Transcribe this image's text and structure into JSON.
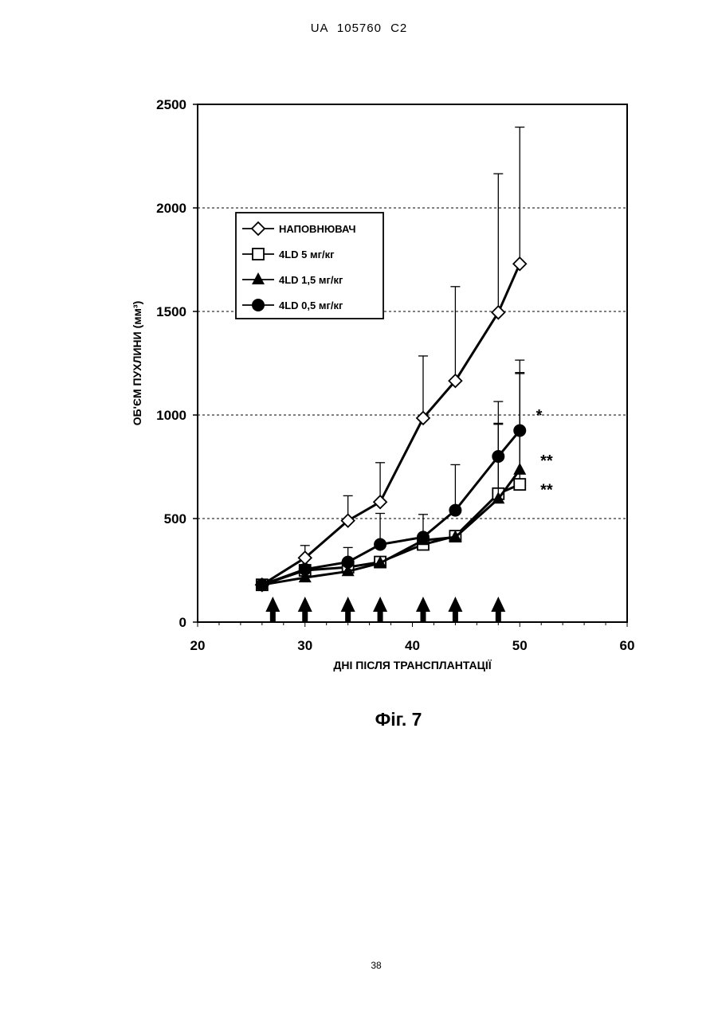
{
  "header": {
    "text": "UA   105760   C2"
  },
  "caption": "Фіг. 7",
  "page_number": "38",
  "chart_data": {
    "type": "line",
    "xlabel": "ДНІ ПІСЛЯ ТРАНСПЛАНТАЦІЇ",
    "ylabel": "ОБ'ЄМ ПУХЛИНИ (мм³)",
    "xlim": [
      20,
      60
    ],
    "ylim": [
      0,
      2500
    ],
    "x_ticks": [
      20,
      30,
      40,
      50,
      60
    ],
    "y_ticks": [
      0,
      500,
      1000,
      1500,
      2000,
      2500
    ],
    "grid": "horizontal dashed at 500, 1000, 1500, 2000",
    "legend_position": "top-left",
    "series": [
      {
        "name": "НАПОВНЮВАЧ",
        "marker": "diamond-open",
        "x": [
          26,
          30,
          34,
          37,
          41,
          44,
          48,
          50
        ],
        "y": [
          180,
          310,
          490,
          580,
          985,
          1165,
          1495,
          1730
        ],
        "err": [
          0,
          60,
          120,
          190,
          300,
          455,
          670,
          660
        ]
      },
      {
        "name": "4LD 5 мг/кг",
        "marker": "square-open",
        "x": [
          26,
          30,
          34,
          37,
          41,
          44,
          48,
          50
        ],
        "y": [
          180,
          250,
          265,
          290,
          375,
          415,
          620,
          665
        ],
        "err": [
          0,
          0,
          0,
          0,
          0,
          0,
          340,
          540
        ]
      },
      {
        "name": "4LD 1,5 мг/кг",
        "marker": "triangle-filled",
        "x": [
          26,
          30,
          34,
          37,
          41,
          44,
          48,
          50
        ],
        "y": [
          180,
          215,
          245,
          285,
          395,
          410,
          595,
          735
        ],
        "err": [
          0,
          0,
          0,
          0,
          0,
          0,
          360,
          465
        ]
      },
      {
        "name": "4LD 0,5 мг/кг",
        "marker": "circle-filled",
        "x": [
          26,
          30,
          34,
          37,
          41,
          44,
          48,
          50
        ],
        "y": [
          180,
          255,
          290,
          375,
          410,
          540,
          800,
          925
        ],
        "err": [
          0,
          0,
          70,
          150,
          110,
          220,
          265,
          340
        ]
      }
    ],
    "significance": [
      {
        "text": "*",
        "x": 51.8,
        "y": 1000
      },
      {
        "text": "**",
        "x": 52.5,
        "y": 780
      },
      {
        "text": "**",
        "x": 52.5,
        "y": 640
      }
    ],
    "dosing_arrows_x": [
      27,
      30,
      34,
      37,
      41,
      44,
      48
    ]
  }
}
